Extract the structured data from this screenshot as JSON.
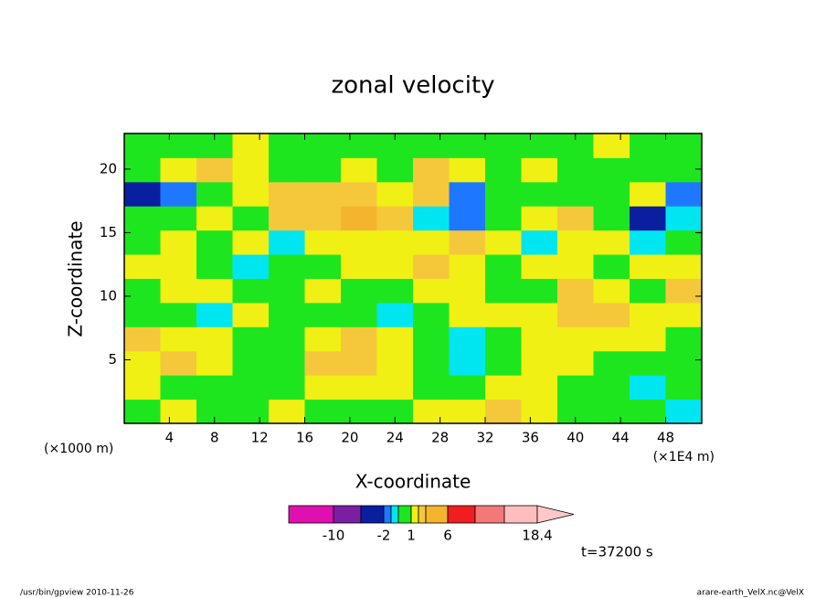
{
  "chart_data": {
    "type": "contour",
    "title": "zonal velocity",
    "x_label": "X-coordinate",
    "y_label": "Z-coordinate",
    "x_unit_left": "(×1000 m)",
    "x_unit_right": "(×1E4 m)",
    "time_label": "t=37200 s",
    "footer_left": "/usr/bin/gpview  2010-11-26",
    "footer_right": "arare-earth_VelX.nc@VelX",
    "xlim": [
      0,
      51.2
    ],
    "ylim": [
      0,
      22.8
    ],
    "xticks": [
      4,
      8,
      12,
      16,
      20,
      24,
      28,
      32,
      36,
      40,
      44,
      48
    ],
    "yticks": [
      5,
      10,
      15,
      20
    ],
    "x": [
      1.6,
      4.8,
      8,
      11.2,
      14.4,
      17.6,
      20.8,
      24,
      27.2,
      30.4,
      33.6,
      36.8,
      40,
      43.2,
      46.4,
      49.6
    ],
    "y": [
      0.95,
      2.85,
      4.75,
      6.65,
      8.55,
      10.45,
      12.35,
      14.25,
      16.15,
      18.05,
      19.95,
      21.85
    ],
    "z": [
      [
        0.5,
        1.5,
        0.5,
        0.5,
        1.5,
        0.5,
        0.5,
        0.5,
        1.5,
        1.5,
        3,
        1.5,
        0.5,
        0.5,
        0.5,
        -0.5
      ],
      [
        1.5,
        0.5,
        0.5,
        0.5,
        0.5,
        1.5,
        1.5,
        1.5,
        0.5,
        0.5,
        1.5,
        1.5,
        0.5,
        0.5,
        -0.5,
        0.5
      ],
      [
        1.5,
        3,
        1.5,
        0.5,
        0.5,
        3,
        3,
        1.5,
        0.5,
        -0.5,
        0.5,
        1.5,
        1.5,
        0.5,
        0.5,
        0.5
      ],
      [
        3,
        1.5,
        1.5,
        0.5,
        0.5,
        1.5,
        3,
        1.5,
        0.5,
        -0.5,
        0.5,
        1.5,
        1.5,
        1.5,
        1.5,
        0.5
      ],
      [
        0.5,
        0.5,
        -0.5,
        1.5,
        0.5,
        0.5,
        0.5,
        -0.5,
        0.5,
        1.5,
        1.5,
        1.5,
        3,
        3,
        1.5,
        1.5
      ],
      [
        0.5,
        1.5,
        1.5,
        0.5,
        0.5,
        1.5,
        0.5,
        0.5,
        1.5,
        1.5,
        0.5,
        0.5,
        3,
        1.5,
        0.5,
        3
      ],
      [
        1.5,
        1.5,
        0.5,
        -0.5,
        0.5,
        0.5,
        1.5,
        1.5,
        3,
        1.5,
        0.5,
        1.5,
        1.5,
        0.5,
        1.5,
        1.5
      ],
      [
        0.5,
        1.5,
        0.5,
        1.5,
        -0.5,
        1.5,
        1.5,
        1.5,
        1.5,
        3,
        1.5,
        -0.5,
        1.5,
        1.5,
        -0.5,
        0.5
      ],
      [
        0.5,
        0.5,
        1.5,
        0.5,
        3,
        3,
        5,
        3,
        -0.5,
        -1.5,
        0.5,
        1.5,
        3,
        0.5,
        -3,
        -0.5
      ],
      [
        -3,
        -1.5,
        0.5,
        1.5,
        3,
        3,
        3,
        1.5,
        3,
        -1.5,
        0.5,
        0.5,
        0.5,
        0.5,
        1.5,
        -1.5
      ],
      [
        0.5,
        1.5,
        3,
        1.5,
        0.5,
        0.5,
        1.5,
        0.5,
        3,
        1.5,
        0.5,
        1.5,
        0.5,
        0.5,
        0.5,
        0.5
      ],
      [
        0.5,
        0.5,
        0.5,
        1.5,
        0.5,
        0.5,
        0.5,
        0.5,
        0.5,
        0.5,
        0.5,
        0.5,
        0.5,
        1.5,
        0.5,
        0.5
      ]
    ],
    "levels": [
      -14,
      -10,
      -6,
      -2,
      -1,
      0,
      1,
      2,
      4,
      6,
      10,
      14,
      18.4
    ],
    "colors": [
      "#e010b0",
      "#7a1fa2",
      "#0a1ea0",
      "#1e78ff",
      "#00e6f0",
      "#1ee61e",
      "#f0f014",
      "#f5c83c",
      "#f5b42d",
      "#f01e1e",
      "#f57878",
      "#ffbebe"
    ],
    "over_color": "#ffc8c8",
    "colorbar_ticks": [
      -10,
      -2,
      1,
      6,
      18.4
    ]
  }
}
